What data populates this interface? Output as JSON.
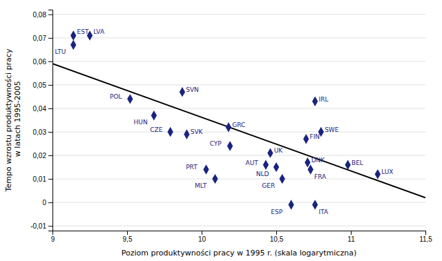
{
  "chart_data": {
    "type": "scatter",
    "x_label": "Poziom produktywności pracy w 1995 r. (skala logarytmiczna)",
    "y_label": "Tempo wzrostu produktywności pracy\n w latach 1995-2005",
    "grid": "y",
    "xlim": [
      9.0,
      11.5
    ],
    "ylim": [
      -0.012,
      0.082
    ],
    "xticks": [
      9,
      {
        "value": 9.5,
        "label": "9,5"
      },
      10,
      {
        "value": 10.5,
        "label": "10,5"
      },
      11,
      {
        "value": 11.5,
        "label": "11,5"
      }
    ],
    "yticks": [
      {
        "value": -0.01,
        "label": "-0,01"
      },
      0,
      {
        "value": 0.01,
        "label": "0,01"
      },
      {
        "value": 0.02,
        "label": "0,02"
      },
      {
        "value": 0.03,
        "label": "0,03"
      },
      {
        "value": 0.04,
        "label": "0,04"
      },
      {
        "value": 0.05,
        "label": "0,05"
      },
      {
        "value": 0.06,
        "label": "0,06"
      },
      {
        "value": 0.07,
        "label": "0,07"
      },
      {
        "value": 0.08,
        "label": "0,08"
      }
    ],
    "series": [
      {
        "type": "scatter",
        "color": "#1a237e",
        "marker": "diamond",
        "x": [
          9.14,
          9.25,
          9.14,
          9.52,
          9.87,
          9.68,
          9.79,
          9.9,
          10.18,
          10.19,
          10.03,
          10.09,
          10.43,
          10.5,
          10.54,
          10.46,
          10.71,
          10.73,
          10.7,
          10.8,
          10.76,
          10.98,
          10.6,
          10.76,
          11.18
        ],
        "values": [
          0.071,
          0.071,
          0.067,
          0.044,
          0.047,
          0.037,
          0.03,
          0.029,
          0.032,
          0.024,
          0.014,
          0.01,
          0.016,
          0.015,
          0.01,
          0.021,
          0.017,
          0.014,
          0.027,
          0.03,
          0.043,
          0.016,
          -0.001,
          -0.001,
          0.012
        ],
        "annotations": [
          "EST",
          "LVA",
          "LTU",
          "POL",
          "SVN",
          "HUN",
          "CZE",
          "SVK",
          "GRC",
          "CYP",
          "PRT",
          "MLT",
          "AUT",
          "NLD",
          "GER",
          "UK",
          "DNK",
          "FRA",
          "FIN",
          "SWE",
          "IRL",
          "BEL",
          "ESP",
          "ITA",
          "LUX"
        ]
      },
      {
        "type": "line",
        "color": "black",
        "line_style": "solid",
        "x": [
          9.0,
          11.5
        ],
        "values": [
          0.059,
          0.002
        ]
      }
    ]
  }
}
